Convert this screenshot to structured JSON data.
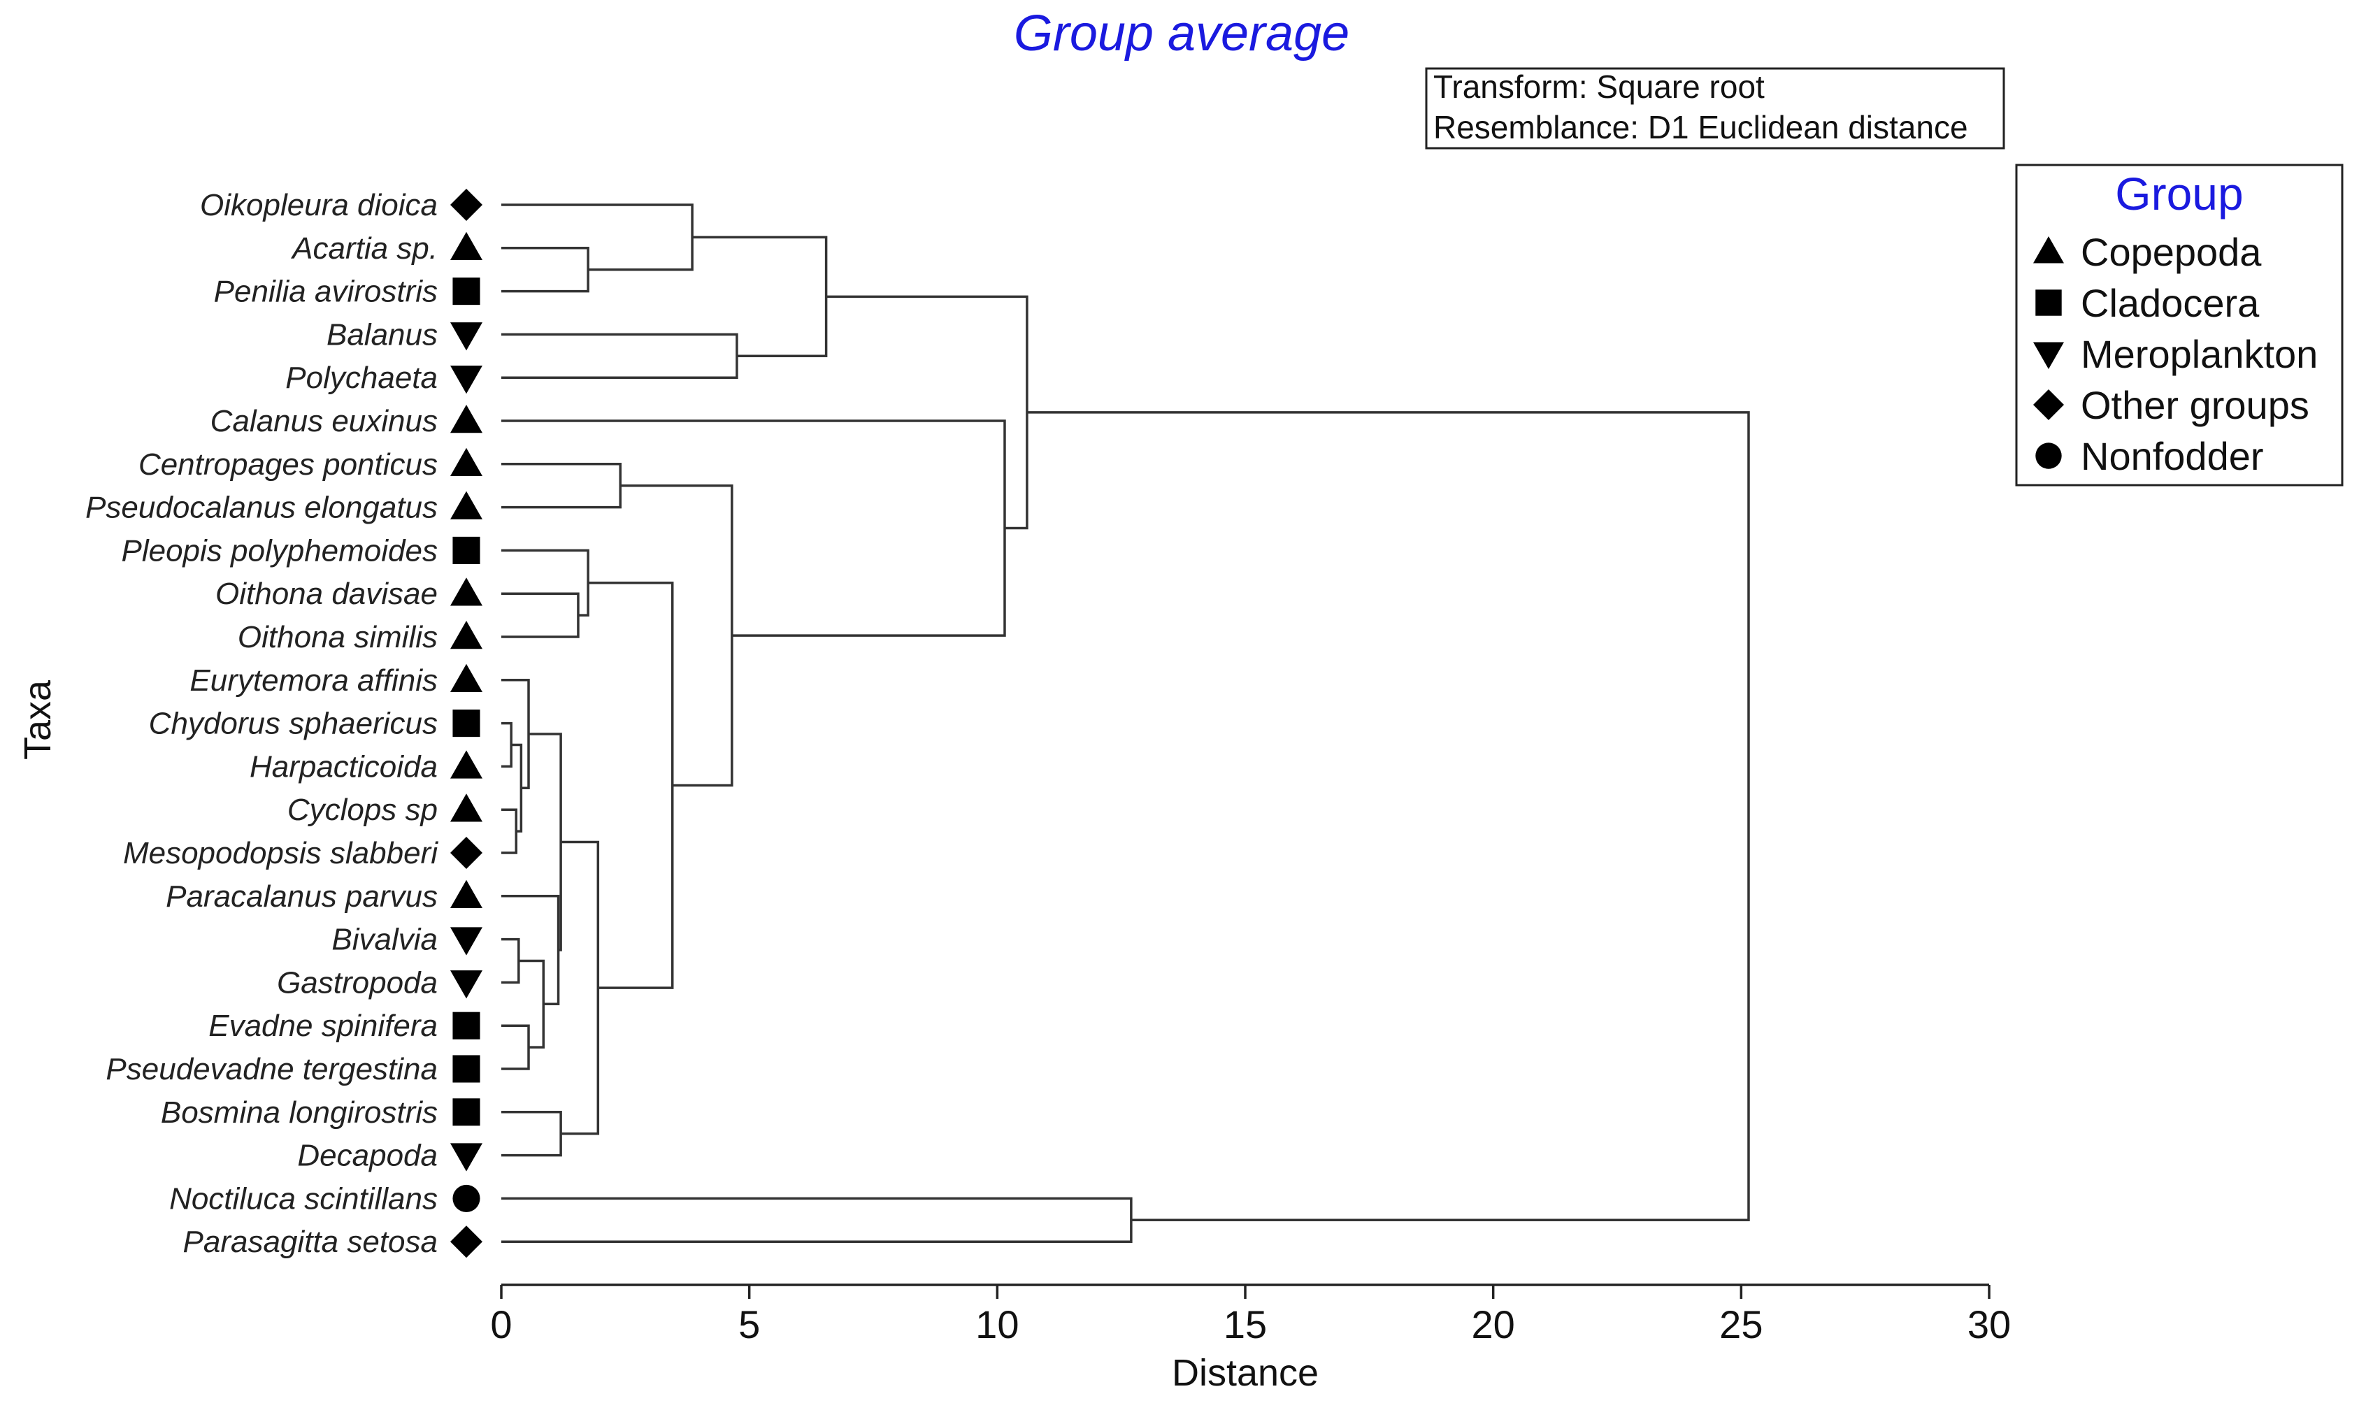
{
  "chart_data": {
    "type": "dendrogram",
    "title": "Group average",
    "xlabel": "Distance",
    "ylabel": "Taxa",
    "xlim": [
      0,
      30
    ],
    "xticks": [
      0,
      5,
      10,
      15,
      20,
      25,
      30
    ],
    "info_box": [
      "Transform: Square root",
      "Resemblance: D1 Euclidean distance"
    ],
    "legend": {
      "title": "Group",
      "items": [
        {
          "label": "Copepoda",
          "symbol": "triangle-up"
        },
        {
          "label": "Cladocera",
          "symbol": "square"
        },
        {
          "label": "Meroplankton",
          "symbol": "triangle-down"
        },
        {
          "label": "Other groups",
          "symbol": "diamond"
        },
        {
          "label": "Nonfodder",
          "symbol": "circle"
        }
      ]
    },
    "leaves": [
      {
        "name": "Oikopleura dioica",
        "group": "Other groups"
      },
      {
        "name": "Acartia sp.",
        "group": "Copepoda"
      },
      {
        "name": "Penilia avirostris",
        "group": "Cladocera"
      },
      {
        "name": "Balanus",
        "group": "Meroplankton"
      },
      {
        "name": "Polychaeta",
        "group": "Meroplankton"
      },
      {
        "name": "Calanus euxinus",
        "group": "Copepoda"
      },
      {
        "name": "Centropages ponticus",
        "group": "Copepoda"
      },
      {
        "name": "Pseudocalanus elongatus",
        "group": "Copepoda"
      },
      {
        "name": "Pleopis polyphemoides",
        "group": "Cladocera"
      },
      {
        "name": "Oithona davisae",
        "group": "Copepoda"
      },
      {
        "name": "Oithona similis",
        "group": "Copepoda"
      },
      {
        "name": "Eurytemora affinis",
        "group": "Copepoda"
      },
      {
        "name": "Chydorus sphaericus",
        "group": "Cladocera"
      },
      {
        "name": "Harpacticoida",
        "group": "Copepoda"
      },
      {
        "name": "Cyclops sp",
        "group": "Copepoda"
      },
      {
        "name": "Mesopodopsis slabberi",
        "group": "Other groups"
      },
      {
        "name": "Paracalanus parvus",
        "group": "Copepoda"
      },
      {
        "name": "Bivalvia",
        "group": "Meroplankton"
      },
      {
        "name": "Gastropoda",
        "group": "Meroplankton"
      },
      {
        "name": "Evadne spinifera",
        "group": "Cladocera"
      },
      {
        "name": "Pseudevadne tergestina",
        "group": "Cladocera"
      },
      {
        "name": "Bosmina longirostris",
        "group": "Cladocera"
      },
      {
        "name": "Decapoda",
        "group": "Meroplankton"
      },
      {
        "name": "Noctiluca scintillans",
        "group": "Nonfodder"
      },
      {
        "name": "Parasagitta setosa",
        "group": "Other groups"
      }
    ],
    "merges": [
      {
        "id": "A",
        "children": [
          "Acartia sp.",
          "Penilia avirostris"
        ],
        "height": 1.75
      },
      {
        "id": "B",
        "children": [
          "Oikopleura dioica",
          "A"
        ],
        "height": 3.85
      },
      {
        "id": "C",
        "children": [
          "Balanus",
          "Polychaeta"
        ],
        "height": 4.75
      },
      {
        "id": "D",
        "children": [
          "B",
          "C"
        ],
        "height": 6.55
      },
      {
        "id": "E",
        "children": [
          "Centropages ponticus",
          "Pseudocalanus elongatus"
        ],
        "height": 2.4
      },
      {
        "id": "F",
        "children": [
          "Oithona davisae",
          "Oithona similis"
        ],
        "height": 1.55
      },
      {
        "id": "G",
        "children": [
          "Pleopis polyphemoides",
          "F"
        ],
        "height": 1.75
      },
      {
        "id": "H",
        "children": [
          "Chydorus sphaericus",
          "Harpacticoida"
        ],
        "height": 0.2
      },
      {
        "id": "I",
        "children": [
          "Cyclops sp",
          "Mesopodopsis slabberi"
        ],
        "height": 0.3
      },
      {
        "id": "J",
        "children": [
          "H",
          "I"
        ],
        "height": 0.4
      },
      {
        "id": "K",
        "children": [
          "Eurytemora affinis",
          "J"
        ],
        "height": 0.55
      },
      {
        "id": "L",
        "children": [
          "Bivalvia",
          "Gastropoda"
        ],
        "height": 0.35
      },
      {
        "id": "M",
        "children": [
          "Evadne spinifera",
          "Pseudevadne tergestina"
        ],
        "height": 0.55
      },
      {
        "id": "N",
        "children": [
          "L",
          "M"
        ],
        "height": 0.85
      },
      {
        "id": "O",
        "children": [
          "Paracalanus parvus",
          "N"
        ],
        "height": 1.15
      },
      {
        "id": "P",
        "children": [
          "K",
          "O"
        ],
        "height": 1.2
      },
      {
        "id": "Q",
        "children": [
          "Bosmina longirostris",
          "Decapoda"
        ],
        "height": 1.2
      },
      {
        "id": "R",
        "children": [
          "P",
          "Q"
        ],
        "height": 1.95
      },
      {
        "id": "S",
        "children": [
          "G",
          "R"
        ],
        "height": 3.45
      },
      {
        "id": "T",
        "children": [
          "E",
          "S"
        ],
        "height": 4.65
      },
      {
        "id": "U",
        "children": [
          "Calanus euxinus",
          "T"
        ],
        "height": 10.15
      },
      {
        "id": "V",
        "children": [
          "D",
          "U"
        ],
        "height": 10.6
      },
      {
        "id": "W",
        "children": [
          "Noctiluca scintillans",
          "Parasagitta setosa"
        ],
        "height": 12.7
      },
      {
        "id": "X",
        "children": [
          "V",
          "W"
        ],
        "height": 25.15
      }
    ]
  }
}
